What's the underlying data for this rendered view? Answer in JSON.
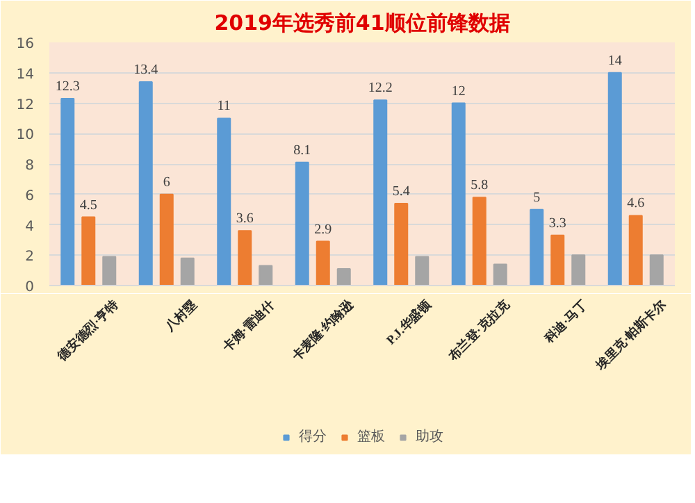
{
  "chart_data": {
    "type": "bar",
    "title": "2019年选秀前41顺位前锋数据",
    "categories": [
      "德安德烈·亨特",
      "八村塁",
      "卡姆·雷迪什",
      "卡麦隆·约翰逊",
      "P.J.华盛顿",
      "布兰登·克拉克",
      "科迪·马丁",
      "埃里克·帕斯卡尔"
    ],
    "series": [
      {
        "name": "得分",
        "color": "#5b9bd5",
        "values": [
          12.3,
          13.4,
          11,
          8.1,
          12.2,
          12,
          5,
          14
        ],
        "value_labels": [
          "12.3",
          "13.4",
          "11",
          "8.1",
          "12.2",
          "12",
          "5",
          "14"
        ]
      },
      {
        "name": "篮板",
        "color": "#ed7d31",
        "values": [
          4.5,
          6,
          3.6,
          2.9,
          5.4,
          5.8,
          3.3,
          4.6
        ],
        "value_labels": [
          "4.5",
          "6",
          "3.6",
          "2.9",
          "5.4",
          "5.8",
          "3.3",
          "4.6"
        ]
      },
      {
        "name": "助攻",
        "color": "#a5a5a5",
        "values": [
          1.9,
          1.8,
          1.3,
          1.1,
          1.9,
          1.4,
          2.0,
          2.0
        ]
      }
    ],
    "ylim": [
      0,
      16
    ],
    "yticks": [
      0,
      2,
      4,
      6,
      8,
      10,
      12,
      14,
      16
    ],
    "grid": "y",
    "legend": "bottom"
  }
}
